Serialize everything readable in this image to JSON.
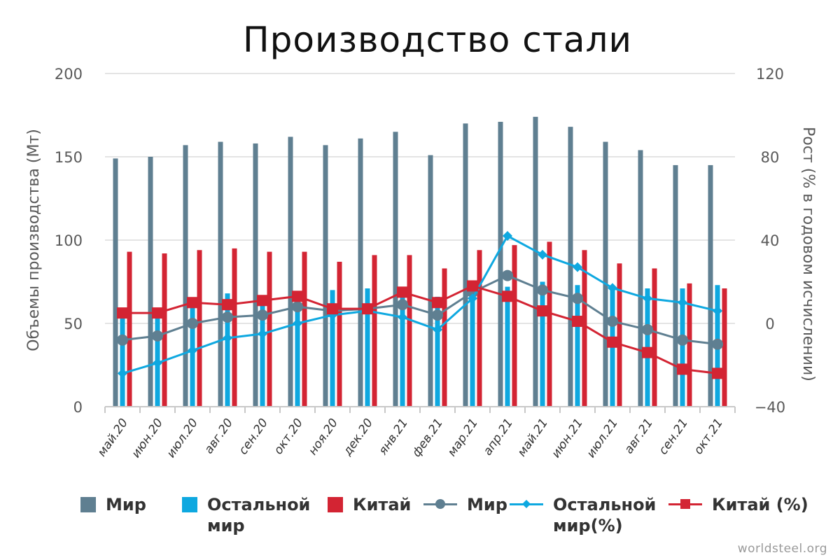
{
  "chart_data": {
    "type": "bar",
    "title": "Производство стали",
    "ylabel": "Объемы производства (Мт)",
    "y2label": "Рост (% в годовом исчислении)",
    "ylim": [
      0,
      200
    ],
    "y2lim": [
      -40,
      120
    ],
    "yticks": [
      "0",
      "50",
      "100",
      "150",
      "200"
    ],
    "y2ticks": [
      "−40",
      "0",
      "40",
      "80",
      "120"
    ],
    "grid": true,
    "categories": [
      "май.20",
      "июн.20",
      "июл.20",
      "авг.20",
      "сен.20",
      "окт.20",
      "ноя.20",
      "дек.20",
      "янв.21",
      "фев.21",
      "мар.21",
      "апр.21",
      "май.21",
      "июн.21",
      "июл.21",
      "авг.21",
      "сен.21",
      "окт.21"
    ],
    "series": [
      {
        "name": "Мир",
        "kind": "bar",
        "axis": "left",
        "color": "#5f7f91",
        "values": [
          149,
          150,
          157,
          159,
          158,
          162,
          157,
          161,
          165,
          151,
          170,
          171,
          174,
          168,
          159,
          154,
          145,
          145
        ]
      },
      {
        "name": "Остальной мир",
        "kind": "bar",
        "axis": "left",
        "color": "#0ea8e0",
        "values": [
          55,
          56,
          64,
          68,
          64,
          65,
          70,
          71,
          68,
          66,
          74,
          72,
          75,
          73,
          72,
          71,
          71,
          73
        ]
      },
      {
        "name": "Китай",
        "kind": "bar",
        "axis": "left",
        "color": "#d32433",
        "values": [
          93,
          92,
          94,
          95,
          93,
          93,
          87,
          91,
          91,
          83,
          94,
          97,
          99,
          94,
          86,
          83,
          74,
          71
        ]
      },
      {
        "name": "Мир",
        "kind": "line",
        "axis": "right",
        "marker": "circle",
        "color": "#5f7f91",
        "values": [
          -8,
          -6,
          0,
          3,
          4,
          8,
          6,
          7,
          9,
          4,
          15,
          23,
          16,
          12,
          1,
          -3,
          -8,
          -10
        ]
      },
      {
        "name": "Остальной мир(%)",
        "kind": "line",
        "axis": "right",
        "marker": "diamond",
        "color": "#0ea8e0",
        "values": [
          -24,
          -19,
          -13,
          -7,
          -5,
          0,
          4,
          6,
          3,
          -3,
          12,
          42,
          33,
          27,
          17,
          12,
          10,
          6
        ]
      },
      {
        "name": "Китай (%)",
        "kind": "line",
        "axis": "right",
        "marker": "square",
        "color": "#d32433",
        "values": [
          5,
          5,
          10,
          9,
          11,
          13,
          7,
          7,
          15,
          10,
          18,
          13,
          6,
          1,
          -9,
          -14,
          -22,
          -24
        ]
      }
    ],
    "legend_position": "bottom"
  },
  "legend": [
    {
      "label": "Мир",
      "type": "bar",
      "color": "#5f7f91"
    },
    {
      "label": "Остальной\nмир",
      "type": "bar",
      "color": "#0ea8e0"
    },
    {
      "label": "Китай",
      "type": "bar",
      "color": "#d32433"
    },
    {
      "label": "Мир",
      "type": "line",
      "marker": "circle",
      "color": "#5f7f91"
    },
    {
      "label": "Остальной\nмир(%)",
      "type": "line",
      "marker": "diamond",
      "color": "#0ea8e0"
    },
    {
      "label": "Китай (%)",
      "type": "line",
      "marker": "square",
      "color": "#d32433"
    }
  ],
  "source": "worldsteel.org"
}
